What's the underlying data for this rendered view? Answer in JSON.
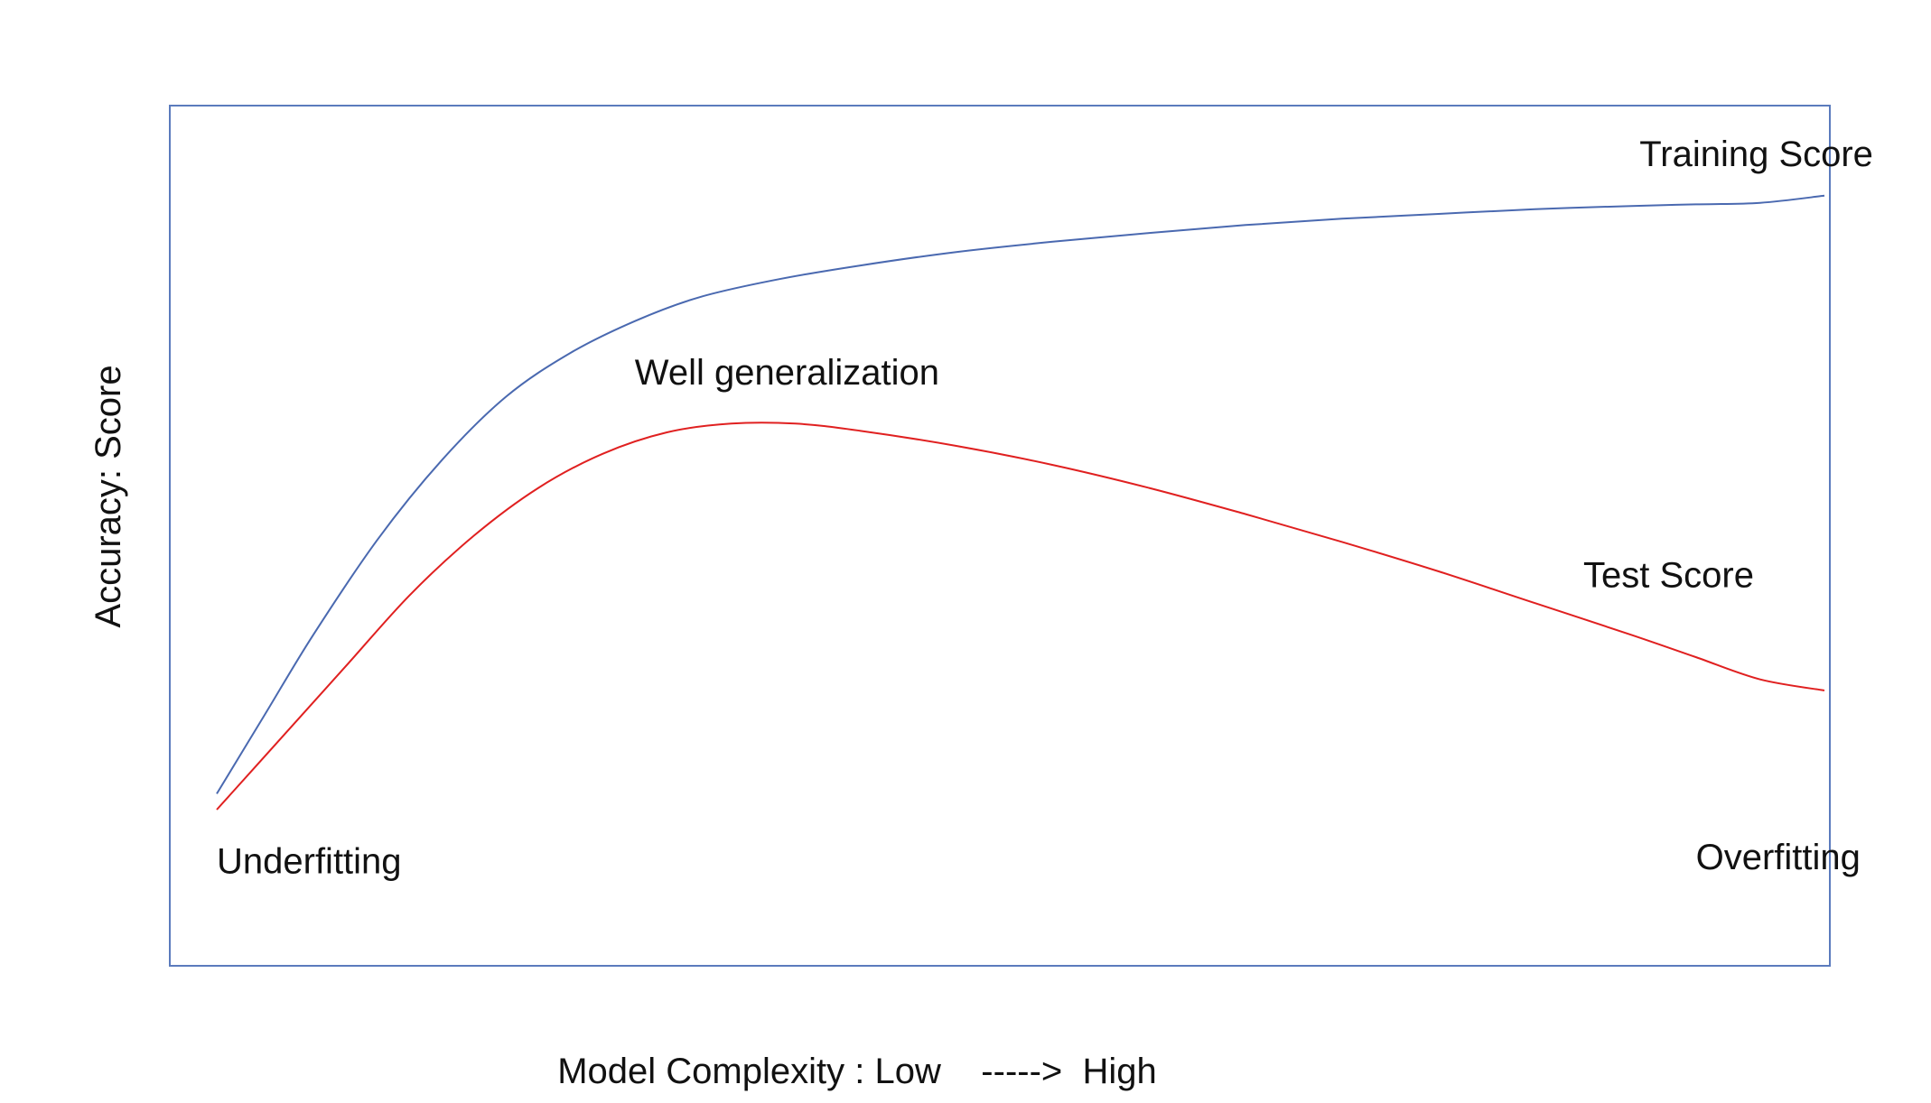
{
  "chart_data": {
    "type": "line",
    "title": "",
    "xlabel": "Model Complexity : Low    ----->  High",
    "ylabel": "Accuracy: Score",
    "xlim": [
      0,
      100
    ],
    "ylim": [
      0,
      100
    ],
    "grid": false,
    "axis_ticks": false,
    "series": [
      {
        "name": "Training Score",
        "color": "#4a69b0",
        "x": [
          0,
          3,
          6,
          10,
          14,
          18,
          22,
          26,
          30,
          35,
          40,
          46,
          52,
          58,
          64,
          70,
          76,
          82,
          88,
          92,
          96,
          100
        ],
        "y": [
          12,
          22,
          32,
          44,
          54,
          62,
          67.5,
          71.5,
          74.5,
          76.8,
          78.5,
          80.2,
          81.5,
          82.6,
          83.6,
          84.4,
          85,
          85.6,
          86,
          86.2,
          86.4,
          87.3
        ]
      },
      {
        "name": "Test Score",
        "color": "#e02020",
        "x": [
          0,
          4,
          8,
          12,
          16,
          20,
          24,
          28,
          32,
          36,
          40,
          46,
          52,
          58,
          64,
          70,
          76,
          82,
          88,
          92,
          96,
          100
        ],
        "y": [
          10,
          19,
          28,
          37,
          44.5,
          50.5,
          54.8,
          57.5,
          58.6,
          58.6,
          57.7,
          55.8,
          53.4,
          50.5,
          47.2,
          43.7,
          40,
          36,
          32,
          29.2,
          26.4,
          25
        ]
      }
    ],
    "annotations": [
      {
        "text": "Training Score",
        "x": 88.5,
        "y": 91
      },
      {
        "text": "Well generalization",
        "x": 26,
        "y": 63.5
      },
      {
        "text": "Test Score",
        "x": 85,
        "y": 38
      },
      {
        "text": "Underfitting",
        "x": 0,
        "y": 2
      },
      {
        "text": "Overfitting",
        "x": 92,
        "y": 2.5
      }
    ]
  }
}
